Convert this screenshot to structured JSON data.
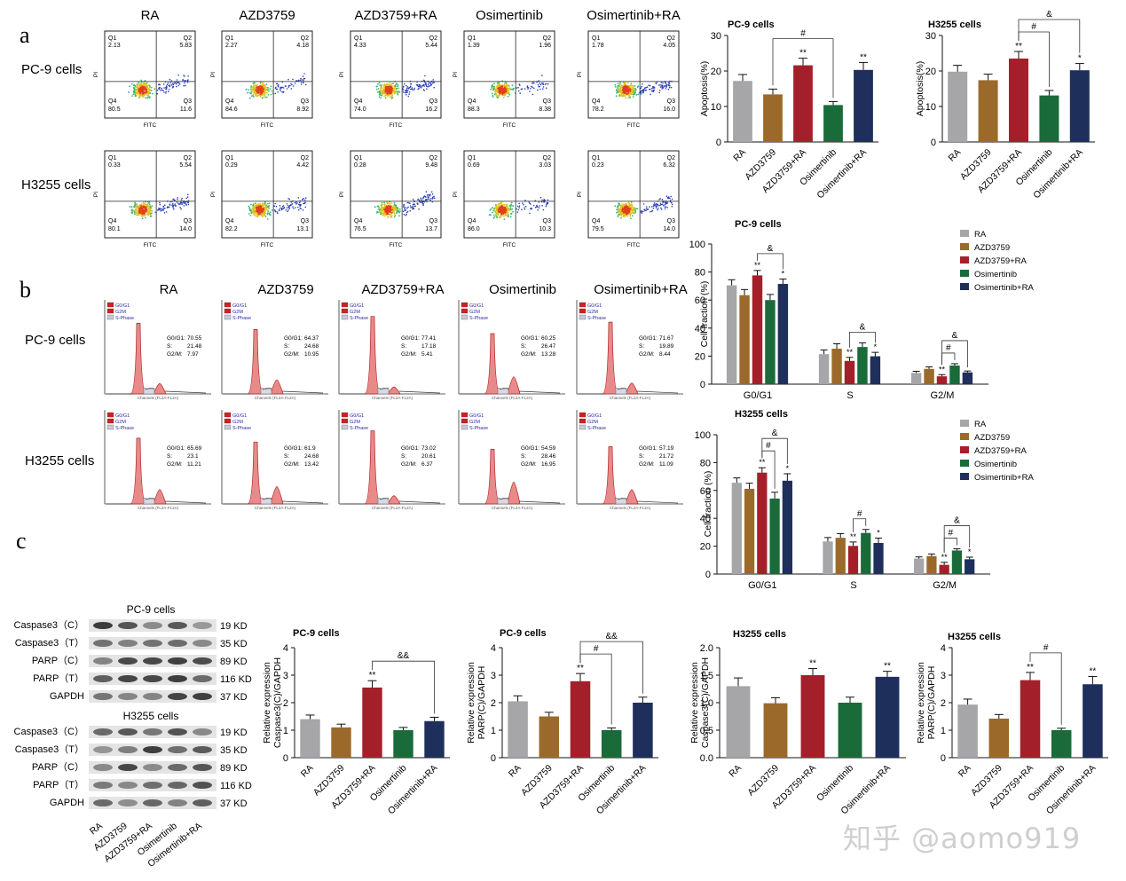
{
  "panel_labels": [
    "a",
    "b",
    "c"
  ],
  "colors": {
    "RA": "#a6a6a8",
    "AZD3759": "#9b6a2a",
    "AZD3759+RA": "#a3202a",
    "Osimertinib": "#1a6b3a",
    "Osimertinib+RA": "#1f2f5c"
  },
  "flow": {
    "columns": [
      "RA",
      "AZD3759",
      "AZD3759+RA",
      "Osimertinib",
      "Osimertinib+RA"
    ],
    "rows": [
      "PC-9 cells",
      "H3255 cells"
    ],
    "axis_x": "FITC",
    "axis_y": "PI",
    "quadrants": [
      "Q1",
      "Q2",
      "Q3",
      "Q4"
    ],
    "values": [
      [
        [
          "2.13",
          "5.83",
          "11.6",
          "80.5"
        ],
        [
          "2.27",
          "4.18",
          "8.92",
          "84.6"
        ],
        [
          "4.33",
          "5.44",
          "16.2",
          "74.0"
        ],
        [
          "1.39",
          "1.96",
          "8.38",
          "88.3"
        ],
        [
          "1.78",
          "4.05",
          "16.0",
          "78.2"
        ]
      ],
      [
        [
          "0.33",
          "5.54",
          "14.0",
          "80.1"
        ],
        [
          "0.29",
          "4.42",
          "13.1",
          "82.2"
        ],
        [
          "0.28",
          "9.48",
          "13.7",
          "76.5"
        ],
        [
          "0.69",
          "3.03",
          "10.3",
          "86.0"
        ],
        [
          "0.23",
          "6.32",
          "14.0",
          "79.5"
        ]
      ]
    ]
  },
  "cycle": {
    "columns": [
      "RA",
      "AZD3759",
      "AZD3759+RA",
      "Osimertinib",
      "Osimertinib+RA"
    ],
    "rows": [
      "PC-9 cells",
      "H3255 cells"
    ],
    "legend": [
      "G0/G1",
      "G2M",
      "S-Phase"
    ],
    "xlabel": "Channels (FL2A-FL2A)",
    "stat_labels": [
      "G0/G1:",
      "S:",
      "G2/M:"
    ],
    "values": [
      [
        [
          "70.55",
          "21.48",
          "7.97"
        ],
        [
          "64.37",
          "24.68",
          "10.95"
        ],
        [
          "77.41",
          "17.18",
          "5.41"
        ],
        [
          "60.25",
          "26.47",
          "13.28"
        ],
        [
          "71.67",
          "19.89",
          "8.44"
        ]
      ],
      [
        [
          "65.69",
          "23.1",
          "11.21"
        ],
        [
          "61.9",
          "24.68",
          "13.42"
        ],
        [
          "73.02",
          "20.61",
          "6.37"
        ],
        [
          "54.59",
          "28.46",
          "16.95"
        ],
        [
          "57.19",
          "21.72",
          "11.09"
        ]
      ]
    ]
  },
  "western": {
    "groups": [
      {
        "title": "PC-9 cells",
        "bands": [
          "Caspase3（C）",
          "Caspase3（T）",
          "PARP（C）",
          "PARP（T）",
          "GAPDH"
        ],
        "sizes": [
          "19 KD",
          "35 KD",
          "89 KD",
          "116 KD",
          "37 KD"
        ]
      },
      {
        "title": "H3255 cells",
        "bands": [
          "Caspase3（C）",
          "Caspase3（T）",
          "PARP（C）",
          "PARP（T）",
          "GAPDH"
        ],
        "sizes": [
          "19 KD",
          "35 KD",
          "89 KD",
          "116 KD",
          "37 KD"
        ]
      }
    ],
    "lanes": [
      "RA",
      "AZD3759",
      "AZD3759+RA",
      "Osimertinib",
      "Osimertinib+RA"
    ]
  },
  "chart_data": [
    {
      "id": "apoptosis-pc9",
      "type": "bar",
      "title": "PC-9 cells",
      "ylabel": "Apoptosis(%)",
      "ylim": [
        0,
        30
      ],
      "yticks": [
        0,
        10,
        20,
        30
      ],
      "categories": [
        "RA",
        "AZD3759",
        "AZD3759+RA",
        "Osimertinib",
        "Osimertinib+RA"
      ],
      "values": [
        17.2,
        13.4,
        21.6,
        10.4,
        20.3
      ],
      "errors": [
        1.8,
        1.5,
        2.0,
        1.0,
        2.1
      ],
      "marks": [
        "",
        "",
        "**",
        "",
        "**"
      ],
      "brackets": [
        {
          "from": 1,
          "to": 3,
          "label": "#",
          "level": 0
        }
      ]
    },
    {
      "id": "apoptosis-h3255",
      "type": "bar",
      "title": "H3255 cells",
      "ylabel": "Apoptosis(%)",
      "ylim": [
        0,
        30
      ],
      "yticks": [
        0,
        10,
        20,
        30
      ],
      "categories": [
        "RA",
        "AZD3759",
        "AZD3759+RA",
        "Osimertinib",
        "Osimertinib+RA"
      ],
      "values": [
        19.8,
        17.4,
        23.5,
        13.1,
        20.2
      ],
      "errors": [
        1.8,
        1.7,
        2.0,
        1.4,
        1.9
      ],
      "marks": [
        "",
        "",
        "**",
        "",
        "*"
      ],
      "brackets": [
        {
          "from": 2,
          "to": 3,
          "label": "#",
          "level": 0
        },
        {
          "from": 2,
          "to": 4,
          "label": "&",
          "level": 1
        }
      ]
    },
    {
      "id": "cycle-pc9",
      "type": "bar",
      "title": "PC-9 cells",
      "ylabel": "Cell fraction (%)",
      "ylim": [
        0,
        100
      ],
      "yticks": [
        0,
        20,
        40,
        60,
        80,
        100
      ],
      "categories": [
        "G0/G1",
        "S",
        "G2/M"
      ],
      "legend": [
        "RA",
        "AZD3759",
        "AZD3759+RA",
        "Osimertinib",
        "Osimertinib+RA"
      ],
      "series": [
        {
          "name": "RA",
          "values": [
            70.5,
            21.4,
            8.0
          ],
          "errors": [
            4,
            3,
            1.2
          ],
          "marks": [
            "",
            "",
            ""
          ]
        },
        {
          "name": "AZD3759",
          "values": [
            63.5,
            25.3,
            10.9
          ],
          "errors": [
            4,
            3.5,
            1.4
          ],
          "marks": [
            "",
            "",
            ""
          ]
        },
        {
          "name": "AZD3759+RA",
          "values": [
            77.6,
            16.6,
            5.6
          ],
          "errors": [
            3.5,
            2.5,
            1.2
          ],
          "marks": [
            "**",
            "**",
            "**"
          ]
        },
        {
          "name": "Osimertinib",
          "values": [
            60.0,
            26.5,
            13.3
          ],
          "errors": [
            4,
            3,
            1.3
          ],
          "marks": [
            "",
            "",
            ""
          ]
        },
        {
          "name": "Osimertinib+RA",
          "values": [
            71.5,
            19.9,
            8.4
          ],
          "errors": [
            3.5,
            2.8,
            1.0
          ],
          "marks": [
            "*",
            "*",
            ""
          ]
        }
      ],
      "brackets": [
        {
          "cat": 0,
          "from": 2,
          "to": 4,
          "label": "&",
          "level": 0
        },
        {
          "cat": 1,
          "from": 2,
          "to": 4,
          "label": "&",
          "level": 0
        },
        {
          "cat": 2,
          "from": 2,
          "to": 3,
          "label": "#",
          "level": 0
        },
        {
          "cat": 2,
          "from": 2,
          "to": 4,
          "label": "&",
          "level": 1
        }
      ]
    },
    {
      "id": "cycle-h3255",
      "type": "bar",
      "title": "H3255 cells",
      "ylabel": "Cell fraction (%)",
      "ylim": [
        0,
        100
      ],
      "yticks": [
        0,
        20,
        40,
        60,
        80,
        100
      ],
      "categories": [
        "G0/G1",
        "S",
        "G2/M"
      ],
      "legend": [
        "RA",
        "AZD3759",
        "AZD3759+RA",
        "Osimertinib",
        "Osimertinib+RA"
      ],
      "series": [
        {
          "name": "RA",
          "values": [
            65.5,
            23.4,
            11.1
          ],
          "errors": [
            3.5,
            2.8,
            1.2
          ],
          "marks": [
            "",
            "",
            ""
          ]
        },
        {
          "name": "AZD3759",
          "values": [
            61.2,
            26.0,
            12.9
          ],
          "errors": [
            4,
            3,
            1.5
          ],
          "marks": [
            "",
            "",
            ""
          ]
        },
        {
          "name": "AZD3759+RA",
          "values": [
            72.8,
            20.2,
            6.6
          ],
          "errors": [
            3.5,
            2.8,
            1.8
          ],
          "marks": [
            "**",
            "**",
            "**"
          ]
        },
        {
          "name": "Osimertinib",
          "values": [
            54.2,
            29.5,
            16.9
          ],
          "errors": [
            4.5,
            2.5,
            1.2
          ],
          "marks": [
            "",
            "",
            ""
          ]
        },
        {
          "name": "Osimertinib+RA",
          "values": [
            67.0,
            22.3,
            10.6
          ],
          "errors": [
            5,
            3.5,
            1.5
          ],
          "marks": [
            "*",
            "*",
            "*"
          ]
        }
      ],
      "brackets": [
        {
          "cat": 0,
          "from": 2,
          "to": 3,
          "label": "#",
          "level": 0
        },
        {
          "cat": 0,
          "from": 2,
          "to": 4,
          "label": "&",
          "level": 1
        },
        {
          "cat": 1,
          "from": 2,
          "to": 3,
          "label": "#",
          "level": 0
        },
        {
          "cat": 2,
          "from": 2,
          "to": 3,
          "label": "#",
          "level": 0
        },
        {
          "cat": 2,
          "from": 2,
          "to": 4,
          "label": "&",
          "level": 1
        }
      ]
    },
    {
      "id": "wb-casp-pc9",
      "type": "bar",
      "title": "PC-9 cells",
      "ylabel": "Relative expression\nCaspase3(C)/GAPDH",
      "ylim": [
        0,
        4
      ],
      "yticks": [
        0,
        1,
        2,
        3,
        4
      ],
      "categories": [
        "RA",
        "AZD3759",
        "AZD3759+RA",
        "Osimertinib",
        "Osimertinib+RA"
      ],
      "values": [
        1.4,
        1.1,
        2.55,
        1.0,
        1.33
      ],
      "errors": [
        0.15,
        0.12,
        0.25,
        0.1,
        0.14
      ],
      "marks": [
        "",
        "",
        "**",
        "",
        ""
      ],
      "brackets": [
        {
          "from": 2,
          "to": 4,
          "label": "&&",
          "level": 0
        }
      ]
    },
    {
      "id": "wb-parp-pc9",
      "type": "bar",
      "title": "PC-9 cells",
      "ylabel": "Relative expression\nPARP(C)/GAPDH",
      "ylim": [
        0,
        4
      ],
      "yticks": [
        0,
        1,
        2,
        3,
        4
      ],
      "categories": [
        "RA",
        "AZD3759",
        "AZD3759+RA",
        "Osimertinib",
        "Osimertinib+RA"
      ],
      "values": [
        2.05,
        1.5,
        2.78,
        1.0,
        2.0
      ],
      "errors": [
        0.2,
        0.15,
        0.28,
        0.08,
        0.2
      ],
      "marks": [
        "",
        "",
        "**",
        "",
        ""
      ],
      "brackets": [
        {
          "from": 2,
          "to": 3,
          "label": "#",
          "level": 0
        },
        {
          "from": 2,
          "to": 4,
          "label": "&&",
          "level": 1
        }
      ]
    },
    {
      "id": "wb-casp-h3255",
      "type": "bar",
      "title": "H3255 cells",
      "ylabel": "Relative expression\nCaspase3(C)/GAPDH",
      "ylim": [
        0,
        2.0
      ],
      "yticks": [
        0.0,
        0.5,
        1.0,
        1.5,
        2.0
      ],
      "categories": [
        "RA",
        "AZD3759",
        "AZD3759+RA",
        "Osimertinib",
        "Osimertinib+RA"
      ],
      "values": [
        1.3,
        0.99,
        1.5,
        1.0,
        1.47
      ],
      "errors": [
        0.15,
        0.1,
        0.12,
        0.1,
        0.1
      ],
      "marks": [
        "",
        "",
        "**",
        "",
        "**"
      ],
      "brackets": []
    },
    {
      "id": "wb-parp-h3255",
      "type": "bar",
      "title": "H3255 cells",
      "ylabel": "Relative expression\nPARP(C)/GAPDH",
      "ylim": [
        0,
        4
      ],
      "yticks": [
        0,
        1,
        2,
        3,
        4
      ],
      "categories": [
        "RA",
        "AZD3759",
        "AZD3759+RA",
        "Osimertinib",
        "Osimertinib+RA"
      ],
      "values": [
        1.93,
        1.42,
        2.82,
        1.0,
        2.67
      ],
      "errors": [
        0.2,
        0.15,
        0.28,
        0.07,
        0.28
      ],
      "marks": [
        "",
        "",
        "**",
        "",
        "**"
      ],
      "brackets": [
        {
          "from": 2,
          "to": 3,
          "label": "#",
          "level": 0
        }
      ]
    }
  ],
  "watermark": "知乎 @aomo919"
}
